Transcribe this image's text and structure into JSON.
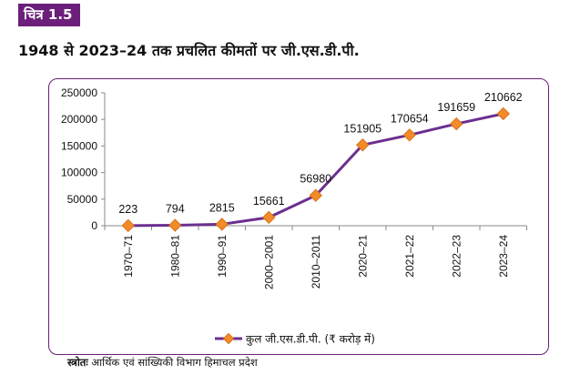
{
  "figure_label": "चित्र 1.5",
  "title": "1948 से 2023–24 तक प्रचलित कीमतों पर जी.एस.डी.पी.",
  "source": {
    "label": "स्त्रोतः",
    "text": " आर्थिक एवं सांख्यिकी विभाग हिमाचल प्रदेश"
  },
  "colors": {
    "line": "#6b2f8f",
    "marker": "#f28c28",
    "marker_edge": "#d9701a",
    "frame": "#6b1f7a"
  },
  "chart_data": {
    "type": "line",
    "title": "",
    "xlabel": "",
    "ylabel": "",
    "categories": [
      "1970–71",
      "1980–81",
      "1990–91",
      "2000–2001",
      "2010–2011",
      "2020–21",
      "2021–22",
      "2022–23",
      "2023–24"
    ],
    "series": [
      {
        "name": "कुल जी.एस.डी.पी. (₹ करोड़ में)",
        "values": [
          223,
          794,
          2815,
          15661,
          56980,
          151905,
          170654,
          191659,
          210662
        ]
      }
    ],
    "data_labels": [
      "223",
      "794",
      "2815",
      "15661",
      "56980",
      "151905",
      "170654",
      "191659",
      "210662"
    ],
    "yticks": [
      "0",
      "50000",
      "100000",
      "150000",
      "200000",
      "250000"
    ],
    "ylim": [
      0,
      250000
    ],
    "grid": false,
    "legend_position": "bottom"
  }
}
